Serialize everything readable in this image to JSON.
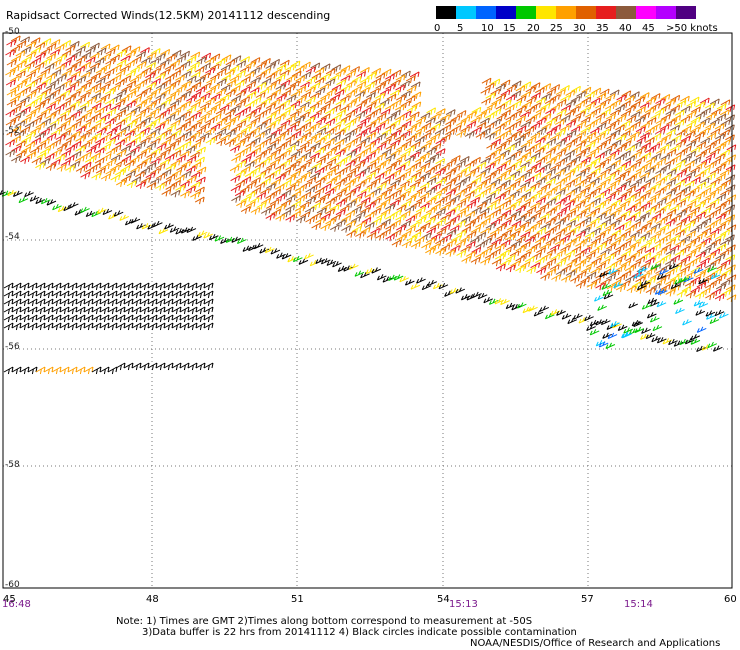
{
  "title": "Rapidsact Corrected Winds(12.5KM) 20141112 descending",
  "legend": {
    "unit": "knots",
    "labels": [
      "0",
      "5",
      "10",
      "15",
      "20",
      "25",
      "30",
      "35",
      "40",
      "45",
      ">50 knots"
    ],
    "colors": [
      "#000000",
      "#00c8ff",
      "#0064ff",
      "#0000c8",
      "#00c800",
      "#ffe600",
      "#ffa000",
      "#e06000",
      "#e61e1e",
      "#8c5a3c",
      "#ff00ff",
      "#b400ff",
      "#500082"
    ]
  },
  "axes": {
    "x_ticks": [
      "45",
      "48",
      "51",
      "54",
      "57",
      "60"
    ],
    "y_ticks": [
      "-50",
      "-52",
      "-54",
      "-56",
      "-58",
      "-60"
    ]
  },
  "times": [
    "16:48",
    "15:13",
    "15:14"
  ],
  "notes": [
    "Note: 1) Times are GMT 2)Times along bottom correspond to measurement at -50S",
    "3)Data buffer is 22 hrs from 20141112 4) Black circles indicate possible contamination",
    "NOAA/NESDIS/Office of Research and Applications"
  ]
}
